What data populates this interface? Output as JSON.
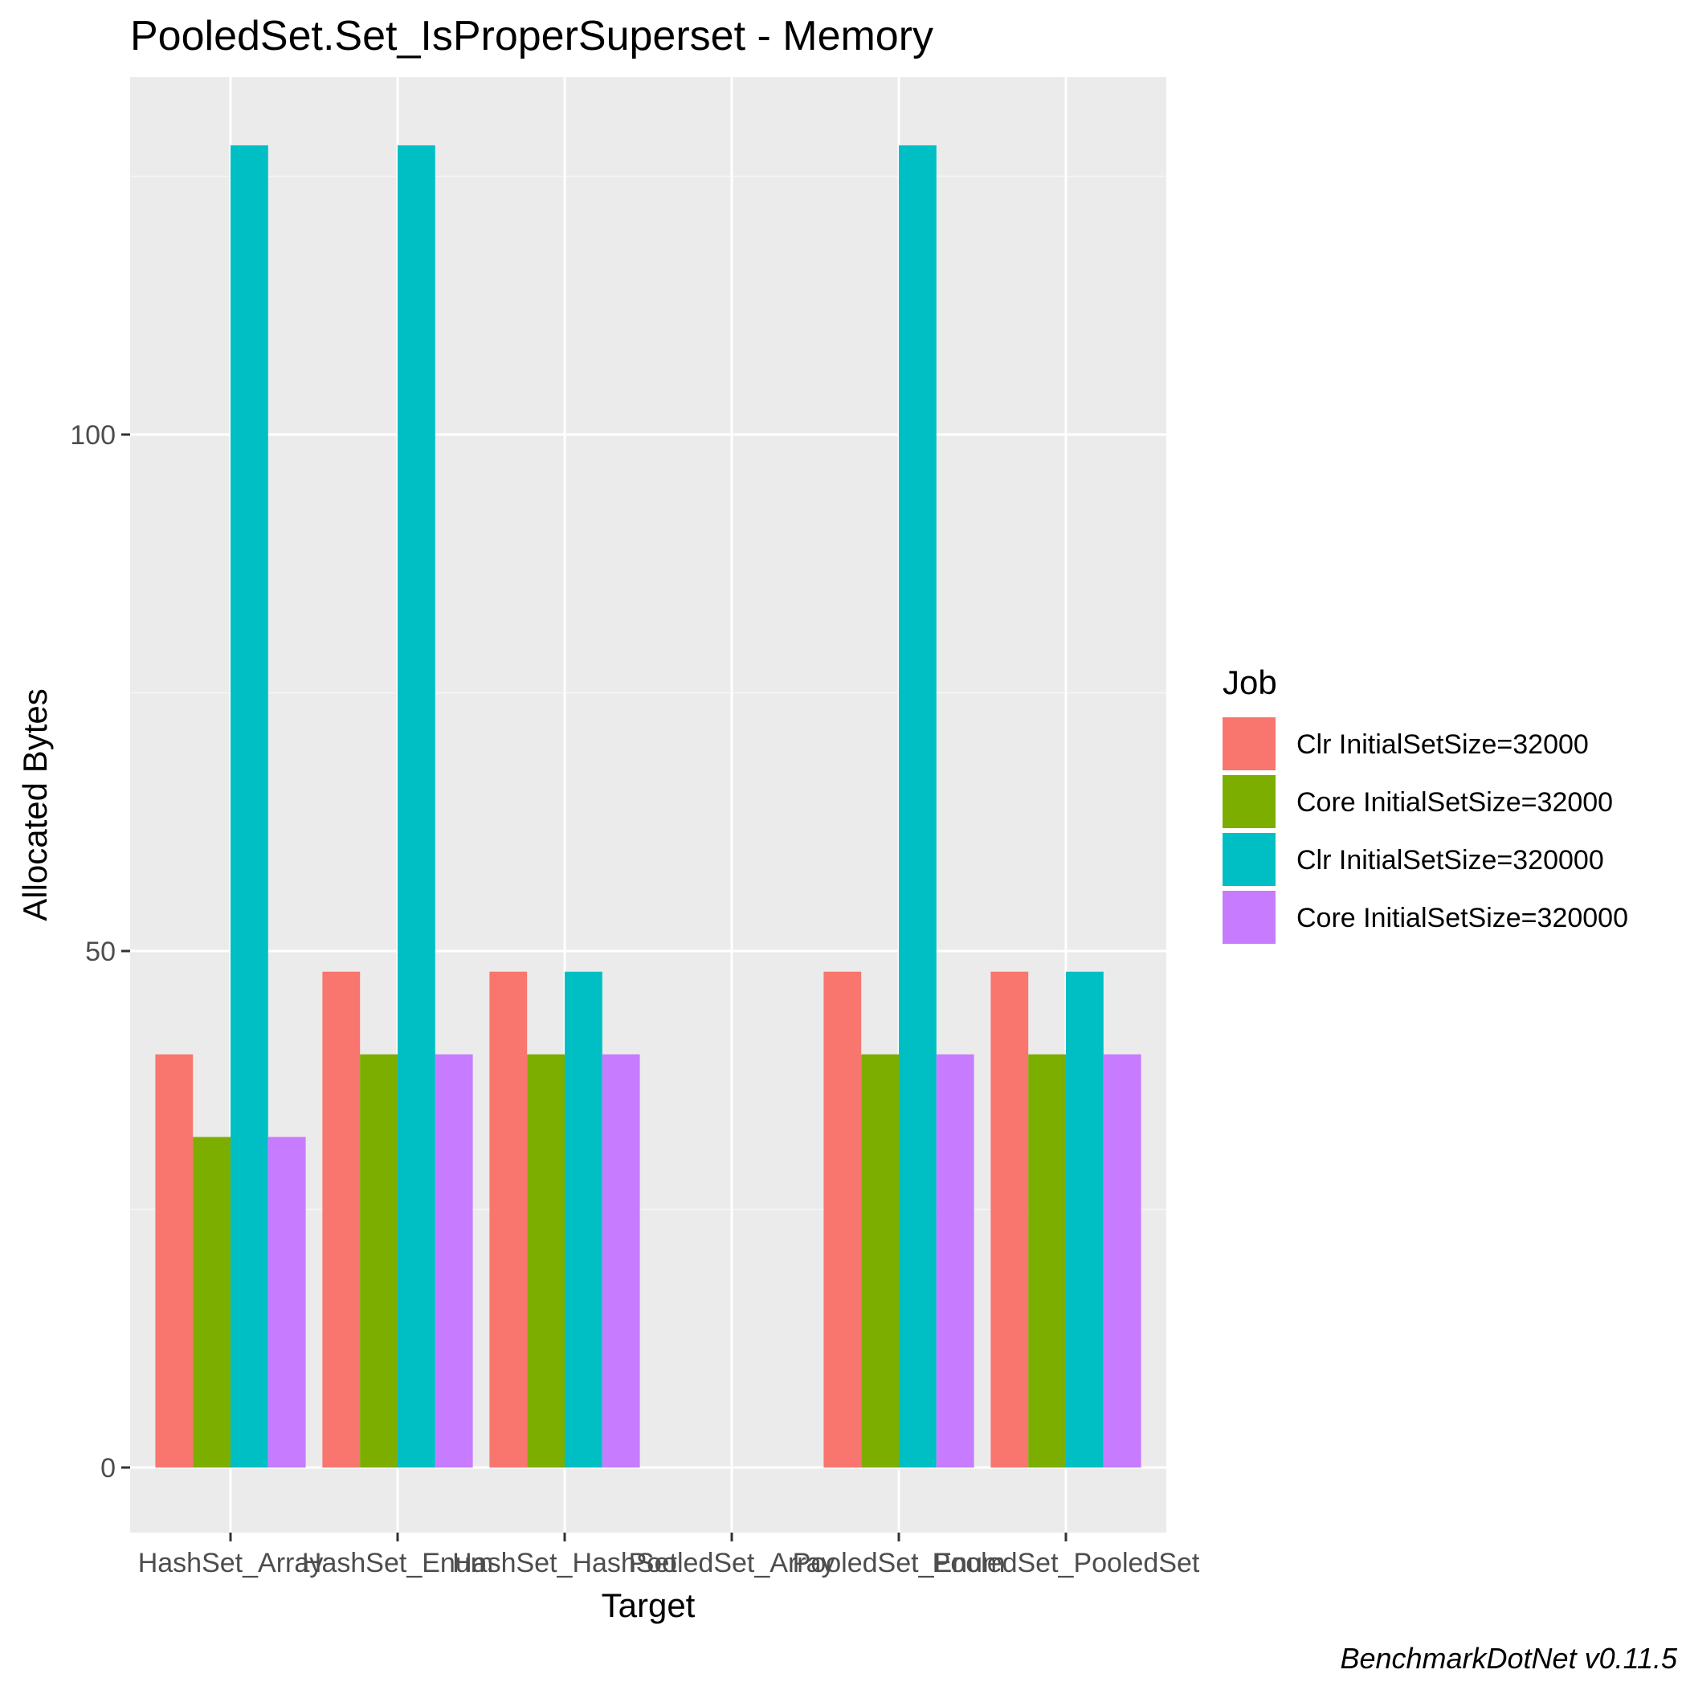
{
  "chart_data": {
    "type": "bar",
    "title": "PooledSet.Set_IsProperSuperset - Memory",
    "xlabel": "Target",
    "ylabel": "Allocated  Bytes",
    "caption": "BenchmarkDotNet v0.11.5",
    "categories": [
      "HashSet_Array",
      "HashSet_Enum",
      "HashSet_HashSet",
      "PooledSet_Array",
      "PooledSet_Enum",
      "PooledSet_PooledSet"
    ],
    "legend_title": "Job",
    "legend_position": "right",
    "grid": true,
    "ylim": [
      -6.3,
      134
    ],
    "y_ticks": [
      0,
      50,
      100
    ],
    "y_tick_labels": [
      "0",
      "50",
      "100"
    ],
    "series": [
      {
        "name": "Clr InitialSetSize=32000",
        "color": "#F8766D",
        "values": [
          40,
          48,
          48,
          0,
          48,
          48
        ]
      },
      {
        "name": "Core InitialSetSize=32000",
        "color": "#7CAE00",
        "values": [
          32,
          40,
          40,
          0,
          40,
          40
        ]
      },
      {
        "name": "Clr InitialSetSize=320000",
        "color": "#00BFC4",
        "values": [
          128,
          128,
          48,
          0,
          128,
          48
        ]
      },
      {
        "name": "Core InitialSetSize=320000",
        "color": "#C77CFF",
        "values": [
          32,
          40,
          40,
          0,
          40,
          40
        ]
      }
    ],
    "colors": {
      "panel_background": "#EBEBEB",
      "grid_major": "#FFFFFF",
      "grid_minor": "#F5F5F5",
      "tick_text": "#4D4D4D",
      "tick_mark": "#333333"
    }
  }
}
